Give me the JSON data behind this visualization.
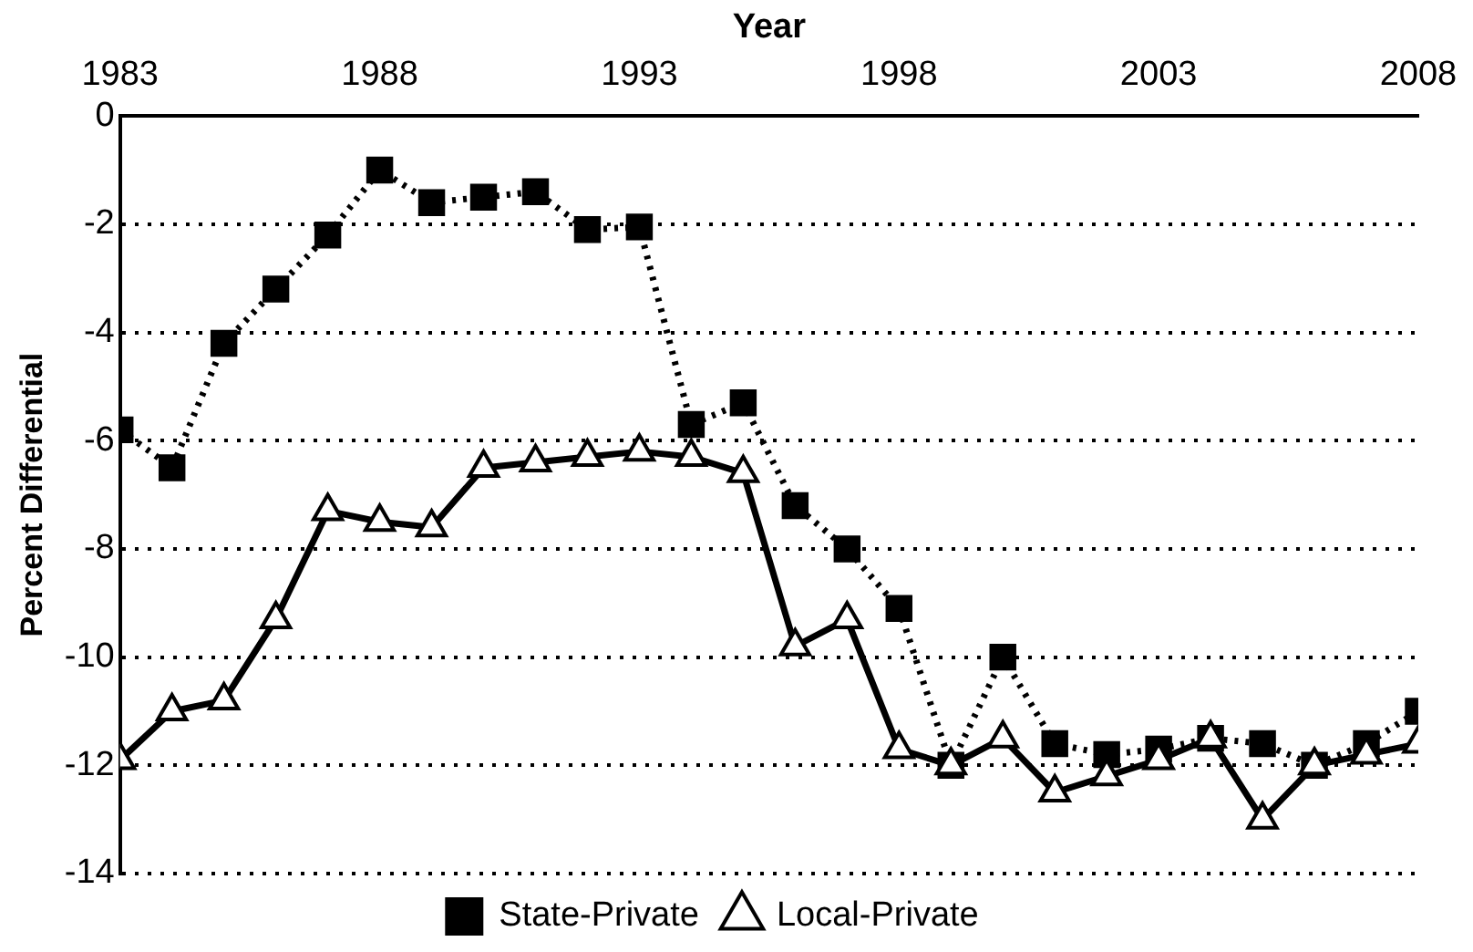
{
  "chart_data": {
    "type": "line",
    "xlabel": "Year",
    "ylabel": "Percent Differential",
    "x": [
      1983,
      1984,
      1985,
      1986,
      1987,
      1988,
      1989,
      1990,
      1991,
      1992,
      1993,
      1994,
      1995,
      1996,
      1997,
      1998,
      1999,
      2000,
      2001,
      2002,
      2003,
      2004,
      2005,
      2006,
      2007,
      2008
    ],
    "series": [
      {
        "name": "State-Private",
        "color": "#000000",
        "marker": "square",
        "line_style": "dotted",
        "values": [
          -5.8,
          -6.5,
          -4.2,
          -3.2,
          -2.2,
          -1.0,
          -1.6,
          -1.5,
          -1.4,
          -2.1,
          -2.05,
          -5.7,
          -5.3,
          -7.2,
          -8.0,
          -9.1,
          -12.0,
          -10.0,
          -11.6,
          -11.8,
          -11.7,
          -11.5,
          -11.6,
          -12.0,
          -11.6,
          -11.0
        ]
      },
      {
        "name": "Local-Private",
        "color": "#000000",
        "marker": "triangle",
        "line_style": "solid",
        "values": [
          -11.9,
          -11.0,
          -10.8,
          -9.3,
          -7.3,
          -7.5,
          -7.6,
          -6.5,
          -6.4,
          -6.3,
          -6.2,
          -6.3,
          -6.6,
          -9.8,
          -9.3,
          -11.7,
          -12.0,
          -11.5,
          -12.5,
          -12.2,
          -11.9,
          -11.5,
          -13.0,
          -12.0,
          -11.8,
          -11.6
        ]
      }
    ],
    "xlim": [
      1983,
      2008
    ],
    "xticks": [
      1983,
      1988,
      1993,
      1998,
      2003,
      2008
    ],
    "ylim": [
      -14,
      0
    ],
    "yticks": [
      0,
      -2,
      -4,
      -6,
      -8,
      -10,
      -12,
      -14
    ],
    "grid": "y",
    "legend": "bottom"
  }
}
